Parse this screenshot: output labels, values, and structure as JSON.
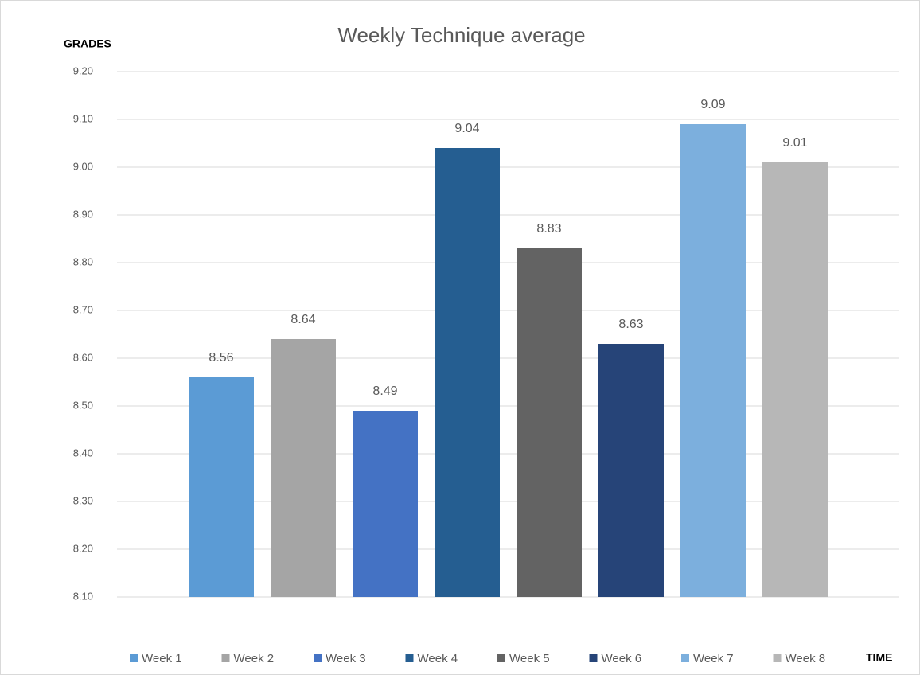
{
  "chart_data": {
    "type": "bar",
    "title": "Weekly Technique average",
    "y_axis_label": "GRADES",
    "x_axis_label": "TIME",
    "series": [
      {
        "name": "Week 1",
        "color": "#5b9bd5",
        "values": [
          8.56
        ]
      },
      {
        "name": "Week 2",
        "color": "#a5a5a5",
        "values": [
          8.64
        ]
      },
      {
        "name": "Week 3",
        "color": "#4472c4",
        "values": [
          8.49
        ]
      },
      {
        "name": "Week 4",
        "color": "#255e91",
        "values": [
          9.04
        ]
      },
      {
        "name": "Week 5",
        "color": "#636363",
        "values": [
          8.83
        ]
      },
      {
        "name": "Week 6",
        "color": "#264478",
        "values": [
          8.63
        ]
      },
      {
        "name": "Week 7",
        "color": "#7cafdd",
        "values": [
          9.09
        ]
      },
      {
        "name": "Week 8",
        "color": "#b7b7b7",
        "values": [
          9.01
        ]
      }
    ],
    "ylim": [
      8.1,
      9.2
    ],
    "yticks": [
      {
        "value": 8.1,
        "label": "8.10"
      },
      {
        "value": 8.2,
        "label": "8.20"
      },
      {
        "value": 8.3,
        "label": "8.30"
      },
      {
        "value": 8.4,
        "label": "8.40"
      },
      {
        "value": 8.5,
        "label": "8.50"
      },
      {
        "value": 8.6,
        "label": "8.60"
      },
      {
        "value": 8.7,
        "label": "8.70"
      },
      {
        "value": 8.8,
        "label": "8.80"
      },
      {
        "value": 8.9,
        "label": "8.90"
      },
      {
        "value": 9.0,
        "label": "9.00"
      },
      {
        "value": 9.1,
        "label": "9.10"
      },
      {
        "value": 9.2,
        "label": "9.20"
      }
    ],
    "grid": true,
    "legend": "bottom"
  }
}
